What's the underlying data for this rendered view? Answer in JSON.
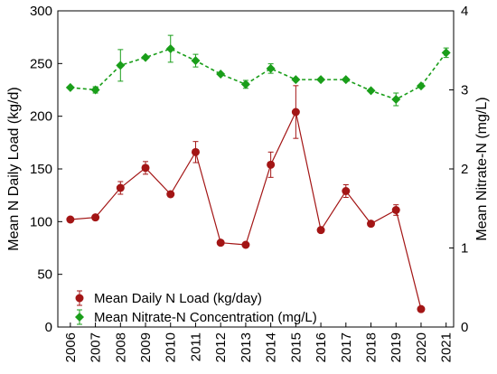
{
  "chart_data": {
    "type": "line",
    "x": [
      "2006",
      "2007",
      "2008",
      "2009",
      "2010",
      "2011",
      "2012",
      "2013",
      "2014",
      "2015",
      "2016",
      "2017",
      "2018",
      "2019",
      "2020",
      "2021"
    ],
    "ylabel_left": "Mean N Daily Load (kg/d)",
    "ylabel_right": "Mean Nitrate-N (mg/L)",
    "ylim_left": [
      0,
      300
    ],
    "ylim_right": [
      0,
      4
    ],
    "yticks_left": [
      "0",
      "50",
      "100",
      "150",
      "200",
      "250",
      "300"
    ],
    "yticks_right": [
      "0",
      "1",
      "2",
      "3",
      "4"
    ],
    "grid": false,
    "legend_position": "bottom-left",
    "series": [
      {
        "name": "Mean Daily N Load (kg/day)",
        "axis": "left",
        "color": "#a31515",
        "marker": "circle",
        "line_style": "solid",
        "values": [
          102,
          104,
          132,
          151,
          126,
          166,
          80,
          78,
          154,
          204,
          92,
          129,
          98,
          111,
          17,
          null
        ],
        "errors": [
          0,
          2,
          6,
          6,
          0,
          10,
          0,
          0,
          12,
          25,
          0,
          6,
          0,
          5,
          0,
          null
        ]
      },
      {
        "name": "Mean Nitrate-N Concentration (mg/L)",
        "axis": "right",
        "color": "#1a9e1a",
        "marker": "diamond",
        "line_style": "dashed",
        "values": [
          3.03,
          3.0,
          3.31,
          3.41,
          3.52,
          3.37,
          3.2,
          3.07,
          3.27,
          3.13,
          3.13,
          3.13,
          2.99,
          2.88,
          3.05,
          3.47
        ],
        "errors": [
          0,
          0.04,
          0.2,
          0,
          0.17,
          0.08,
          0,
          0.05,
          0.06,
          0,
          0,
          0,
          0,
          0.08,
          0,
          0.06
        ]
      }
    ]
  }
}
